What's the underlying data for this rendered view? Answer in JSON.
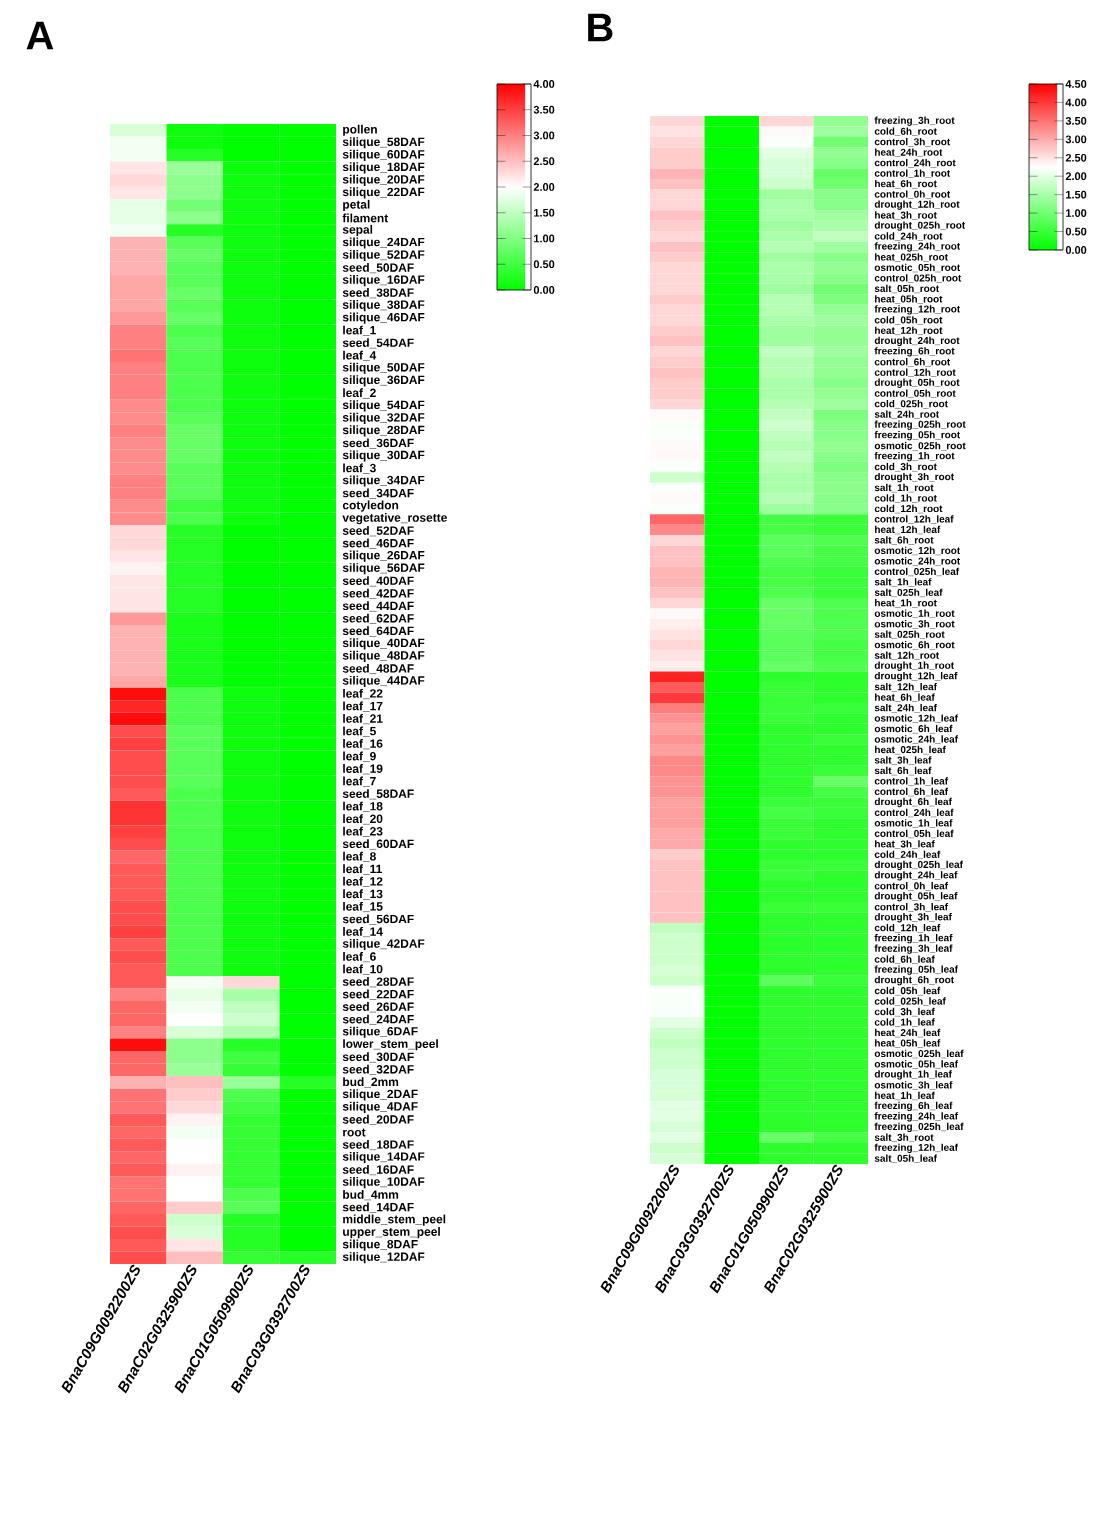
{
  "chart_data": [
    {
      "type": "heatmap",
      "title": "A",
      "clim": [
        0,
        4
      ],
      "cticks": [
        {
          "value": 0,
          "label": "0.00"
        },
        {
          "value": 0.5,
          "label": "0.50"
        },
        {
          "value": 1,
          "label": "1.00"
        },
        {
          "value": 1.5,
          "label": "1.50"
        },
        {
          "value": 2,
          "label": "2.00"
        },
        {
          "value": 2.5,
          "label": "2.50"
        },
        {
          "value": 3,
          "label": "3.00"
        },
        {
          "value": 3.5,
          "label": "3.50"
        },
        {
          "value": 4,
          "label": "4.00"
        }
      ],
      "categories": [
        "BnaC09G0092200ZS",
        "BnaC02G0325900ZS",
        "BnaC01G0509900ZS",
        "BnaC03G0392700ZS"
      ],
      "y_categories": [
        "pollen",
        "silique_58DAF",
        "silique_60DAF",
        "silique_18DAF",
        "silique_20DAF",
        "silique_22DAF",
        "petal",
        "filament",
        "sepal",
        "silique_24DAF",
        "silique_52DAF",
        "seed_50DAF",
        "silique_16DAF",
        "seed_38DAF",
        "silique_38DAF",
        "silique_46DAF",
        "leaf_1",
        "seed_54DAF",
        "leaf_4",
        "silique_50DAF",
        "silique_36DAF",
        "leaf_2",
        "silique_54DAF",
        "silique_32DAF",
        "silique_28DAF",
        "seed_36DAF",
        "silique_30DAF",
        "leaf_3",
        "silique_34DAF",
        "seed_34DAF",
        "cotyledon",
        "vegetative_rosette",
        "seed_52DAF",
        "seed_46DAF",
        "silique_26DAF",
        "silique_56DAF",
        "seed_40DAF",
        "seed_42DAF",
        "seed_44DAF",
        "seed_62DAF",
        "seed_64DAF",
        "silique_40DAF",
        "silique_48DAF",
        "seed_48DAF",
        "silique_44DAF",
        "leaf_22",
        "leaf_17",
        "leaf_21",
        "leaf_5",
        "leaf_16",
        "leaf_9",
        "leaf_19",
        "leaf_7",
        "seed_58DAF",
        "leaf_18",
        "leaf_20",
        "leaf_23",
        "seed_60DAF",
        "leaf_8",
        "leaf_11",
        "leaf_12",
        "leaf_13",
        "leaf_15",
        "seed_56DAF",
        "leaf_14",
        "silique_42DAF",
        "leaf_6",
        "leaf_10",
        "seed_28DAF",
        "seed_22DAF",
        "seed_26DAF",
        "seed_24DAF",
        "silique_6DAF",
        "lower_stem_peel",
        "seed_30DAF",
        "seed_32DAF",
        "bud_2mm",
        "silique_2DAF",
        "silique_4DAF",
        "seed_20DAF",
        "root",
        "seed_18DAF",
        "silique_14DAF",
        "seed_16DAF",
        "silique_10DAF",
        "bud_4mm",
        "seed_14DAF",
        "middle_stem_peel",
        "upper_stem_peel",
        "silique_8DAF",
        "silique_12DAF"
      ],
      "cells": [
        [
          1.7,
          0.1,
          0.0,
          0.0
        ],
        [
          1.9,
          0.1,
          0.0,
          0.0
        ],
        [
          1.9,
          0.3,
          0.0,
          0.0
        ],
        [
          2.2,
          1.2,
          0.1,
          0.0
        ],
        [
          2.3,
          1.1,
          0.1,
          0.0
        ],
        [
          2.2,
          1.1,
          0.1,
          0.0
        ],
        [
          1.8,
          0.9,
          0.1,
          0.0
        ],
        [
          1.8,
          1.1,
          0.1,
          0.0
        ],
        [
          1.9,
          0.3,
          0.1,
          0.0
        ],
        [
          2.6,
          0.7,
          0.1,
          0.0
        ],
        [
          2.6,
          0.8,
          0.1,
          0.0
        ],
        [
          2.6,
          0.7,
          0.1,
          0.0
        ],
        [
          2.7,
          0.7,
          0.1,
          0.0
        ],
        [
          2.7,
          0.8,
          0.1,
          0.0
        ],
        [
          2.7,
          0.7,
          0.1,
          0.0
        ],
        [
          2.8,
          0.8,
          0.1,
          0.0
        ],
        [
          3.0,
          0.6,
          0.1,
          0.0
        ],
        [
          3.0,
          0.7,
          0.1,
          0.0
        ],
        [
          3.1,
          0.6,
          0.1,
          0.0
        ],
        [
          3.0,
          0.6,
          0.1,
          0.0
        ],
        [
          3.0,
          0.6,
          0.1,
          0.0
        ],
        [
          3.0,
          0.6,
          0.1,
          0.0
        ],
        [
          2.9,
          0.6,
          0.1,
          0.0
        ],
        [
          2.9,
          0.7,
          0.1,
          0.0
        ],
        [
          3.0,
          0.8,
          0.1,
          0.0
        ],
        [
          2.9,
          0.8,
          0.1,
          0.0
        ],
        [
          2.9,
          0.8,
          0.1,
          0.0
        ],
        [
          2.9,
          0.7,
          0.1,
          0.0
        ],
        [
          3.0,
          0.7,
          0.1,
          0.0
        ],
        [
          3.0,
          0.7,
          0.1,
          0.0
        ],
        [
          2.9,
          0.5,
          0.1,
          0.0
        ],
        [
          2.9,
          0.6,
          0.1,
          0.0
        ],
        [
          2.3,
          0.3,
          0.0,
          0.0
        ],
        [
          2.3,
          0.3,
          0.0,
          0.0
        ],
        [
          2.2,
          0.3,
          0.0,
          0.0
        ],
        [
          2.1,
          0.3,
          0.0,
          0.0
        ],
        [
          2.2,
          0.3,
          0.0,
          0.0
        ],
        [
          2.2,
          0.3,
          0.0,
          0.0
        ],
        [
          2.2,
          0.3,
          0.0,
          0.0
        ],
        [
          2.8,
          0.2,
          0.0,
          0.0
        ],
        [
          2.6,
          0.2,
          0.0,
          0.0
        ],
        [
          2.6,
          0.2,
          0.0,
          0.0
        ],
        [
          2.6,
          0.2,
          0.0,
          0.0
        ],
        [
          2.6,
          0.2,
          0.0,
          0.0
        ],
        [
          2.7,
          0.2,
          0.0,
          0.0
        ],
        [
          3.9,
          0.6,
          0.1,
          0.0
        ],
        [
          3.7,
          0.6,
          0.1,
          0.0
        ],
        [
          3.9,
          0.6,
          0.1,
          0.0
        ],
        [
          3.4,
          0.7,
          0.1,
          0.0
        ],
        [
          3.5,
          0.7,
          0.1,
          0.0
        ],
        [
          3.4,
          0.7,
          0.1,
          0.0
        ],
        [
          3.4,
          0.7,
          0.1,
          0.0
        ],
        [
          3.4,
          0.7,
          0.1,
          0.0
        ],
        [
          3.3,
          0.6,
          0.1,
          0.0
        ],
        [
          3.6,
          0.6,
          0.1,
          0.0
        ],
        [
          3.6,
          0.6,
          0.1,
          0.0
        ],
        [
          3.5,
          0.6,
          0.1,
          0.0
        ],
        [
          3.4,
          0.6,
          0.1,
          0.0
        ],
        [
          3.2,
          0.6,
          0.1,
          0.0
        ],
        [
          3.3,
          0.6,
          0.1,
          0.0
        ],
        [
          3.3,
          0.6,
          0.1,
          0.0
        ],
        [
          3.3,
          0.6,
          0.1,
          0.0
        ],
        [
          3.4,
          0.6,
          0.1,
          0.0
        ],
        [
          3.4,
          0.6,
          0.1,
          0.0
        ],
        [
          3.5,
          0.6,
          0.1,
          0.0
        ],
        [
          3.3,
          0.6,
          0.1,
          0.0
        ],
        [
          3.4,
          0.6,
          0.1,
          0.0
        ],
        [
          3.3,
          0.6,
          0.1,
          0.0
        ],
        [
          3.3,
          1.9,
          2.3,
          0.0
        ],
        [
          3.0,
          1.8,
          1.3,
          0.0
        ],
        [
          3.2,
          1.9,
          1.5,
          0.0
        ],
        [
          3.2,
          2.0,
          1.6,
          0.0
        ],
        [
          3.0,
          1.7,
          1.4,
          0.0
        ],
        [
          3.9,
          1.1,
          0.3,
          0.0
        ],
        [
          3.2,
          1.1,
          0.5,
          0.0
        ],
        [
          3.2,
          1.2,
          0.4,
          0.0
        ],
        [
          2.6,
          2.5,
          1.2,
          0.3
        ],
        [
          3.1,
          2.4,
          0.6,
          0.0
        ],
        [
          3.1,
          2.3,
          0.5,
          0.0
        ],
        [
          3.3,
          2.1,
          0.4,
          0.0
        ],
        [
          3.2,
          1.9,
          0.4,
          0.0
        ],
        [
          3.3,
          2.0,
          0.4,
          0.0
        ],
        [
          3.2,
          2.0,
          0.4,
          0.0
        ],
        [
          3.3,
          2.1,
          0.4,
          0.0
        ],
        [
          3.1,
          2.0,
          0.4,
          0.0
        ],
        [
          3.1,
          2.0,
          0.6,
          0.0
        ],
        [
          3.2,
          2.4,
          0.7,
          0.0
        ],
        [
          3.3,
          1.6,
          0.3,
          0.0
        ],
        [
          3.4,
          1.7,
          0.3,
          0.0
        ],
        [
          3.3,
          2.2,
          0.3,
          0.0
        ],
        [
          3.4,
          2.5,
          0.4,
          0.3
        ]
      ]
    },
    {
      "type": "heatmap",
      "title": "B",
      "clim": [
        0,
        4.5
      ],
      "cticks": [
        {
          "value": 0,
          "label": "0.00"
        },
        {
          "value": 0.5,
          "label": "0.50"
        },
        {
          "value": 1,
          "label": "1.00"
        },
        {
          "value": 1.5,
          "label": "1.50"
        },
        {
          "value": 2,
          "label": "2.00"
        },
        {
          "value": 2.5,
          "label": "2.50"
        },
        {
          "value": 3,
          "label": "3.00"
        },
        {
          "value": 3.5,
          "label": "3.50"
        },
        {
          "value": 4,
          "label": "4.00"
        },
        {
          "value": 4.5,
          "label": "4.50"
        }
      ],
      "categories": [
        "BnaC09G0092200ZS",
        "BnaC03G0392700ZS",
        "BnaC01G0509900ZS",
        "BnaC02G0325900ZS"
      ],
      "y_categories": [
        "freezing_3h_root",
        "cold_6h_root",
        "control_3h_root",
        "heat_24h_root",
        "control_24h_root",
        "control_1h_root",
        "heat_6h_root",
        "control_0h_root",
        "drought_12h_root",
        "heat_3h_root",
        "drought_025h_root",
        "cold_24h_root",
        "freezing_24h_root",
        "heat_025h_root",
        "osmotic_05h_root",
        "control_025h_root",
        "salt_05h_root",
        "heat_05h_root",
        "freezing_12h_root",
        "cold_05h_root",
        "heat_12h_root",
        "drought_24h_root",
        "freezing_6h_root",
        "control_6h_root",
        "control_12h_root",
        "drought_05h_root",
        "control_05h_root",
        "cold_025h_root",
        "salt_24h_root",
        "freezing_025h_root",
        "freezing_05h_root",
        "osmotic_025h_root",
        "freezing_1h_root",
        "cold_3h_root",
        "drought_3h_root",
        "salt_1h_root",
        "cold_1h_root",
        "cold_12h_root",
        "control_12h_leaf",
        "heat_12h_leaf",
        "salt_6h_root",
        "osmotic_12h_root",
        "osmotic_24h_root",
        "control_025h_leaf",
        "salt_1h_leaf",
        "salt_025h_leaf",
        "heat_1h_root",
        "osmotic_1h_root",
        "osmotic_3h_root",
        "salt_025h_root",
        "osmotic_6h_root",
        "salt_12h_root",
        "drought_1h_root",
        "drought_12h_leaf",
        "salt_12h_leaf",
        "heat_6h_leaf",
        "salt_24h_leaf",
        "osmotic_12h_leaf",
        "osmotic_6h_leaf",
        "osmotic_24h_leaf",
        "heat_025h_leaf",
        "salt_3h_leaf",
        "salt_6h_leaf",
        "control_1h_leaf",
        "control_6h_leaf",
        "drought_6h_leaf",
        "control_24h_leaf",
        "osmotic_1h_leaf",
        "control_05h_leaf",
        "heat_3h_leaf",
        "cold_24h_leaf",
        "drought_025h_leaf",
        "drought_24h_leaf",
        "control_0h_leaf",
        "drought_05h_leaf",
        "control_3h_leaf",
        "drought_3h_leaf",
        "cold_12h_leaf",
        "freezing_1h_leaf",
        "freezing_3h_leaf",
        "cold_6h_leaf",
        "freezing_05h_leaf",
        "drought_6h_root",
        "cold_05h_leaf",
        "cold_025h_leaf",
        "cold_3h_leaf",
        "cold_1h_leaf",
        "heat_24h_leaf",
        "heat_05h_leaf",
        "osmotic_025h_leaf",
        "osmotic_05h_leaf",
        "drought_1h_leaf",
        "osmotic_3h_leaf",
        "heat_1h_leaf",
        "freezing_6h_leaf",
        "freezing_24h_leaf",
        "freezing_025h_leaf",
        "salt_3h_root",
        "freezing_12h_leaf",
        "salt_05h_leaf"
      ],
      "cells": [
        [
          2.6,
          0,
          2.6,
          1.3
        ],
        [
          2.5,
          0,
          2.3,
          1.4
        ],
        [
          2.6,
          0,
          2.2,
          1.0
        ],
        [
          2.7,
          0,
          2.0,
          1.3
        ],
        [
          2.7,
          0,
          1.9,
          1.2
        ],
        [
          2.9,
          0,
          1.9,
          0.9
        ],
        [
          2.8,
          0,
          1.8,
          1.0
        ],
        [
          2.6,
          0,
          1.4,
          1.2
        ],
        [
          2.6,
          0,
          1.5,
          1.2
        ],
        [
          2.8,
          0,
          1.5,
          1.4
        ],
        [
          2.7,
          0,
          1.4,
          1.5
        ],
        [
          2.6,
          0,
          1.5,
          1.7
        ],
        [
          2.8,
          0,
          1.6,
          1.4
        ],
        [
          2.7,
          0,
          1.4,
          1.2
        ],
        [
          2.6,
          0,
          1.5,
          1.3
        ],
        [
          2.6,
          0,
          1.5,
          1.2
        ],
        [
          2.6,
          0,
          1.4,
          1.0
        ],
        [
          2.7,
          0,
          1.6,
          1.1
        ],
        [
          2.6,
          0,
          1.6,
          1.3
        ],
        [
          2.6,
          0,
          1.5,
          1.4
        ],
        [
          2.7,
          0,
          1.4,
          1.3
        ],
        [
          2.8,
          0,
          1.4,
          1.3
        ],
        [
          2.6,
          0,
          1.7,
          1.4
        ],
        [
          2.7,
          0,
          1.6,
          1.3
        ],
        [
          2.8,
          0,
          1.6,
          1.3
        ],
        [
          2.7,
          0,
          1.5,
          1.2
        ],
        [
          2.7,
          0,
          1.5,
          1.3
        ],
        [
          2.6,
          0,
          1.6,
          1.4
        ],
        [
          2.3,
          0,
          1.7,
          1.1
        ],
        [
          2.2,
          0,
          1.8,
          1.2
        ],
        [
          2.2,
          0,
          1.7,
          1.2
        ],
        [
          2.3,
          0,
          1.6,
          1.3
        ],
        [
          2.3,
          0,
          1.7,
          1.2
        ],
        [
          2.2,
          0,
          1.6,
          1.1
        ],
        [
          1.8,
          0,
          1.5,
          1.2
        ],
        [
          2.2,
          0,
          1.5,
          1.2
        ],
        [
          2.3,
          0,
          1.6,
          1.2
        ],
        [
          2.2,
          0,
          1.4,
          1.2
        ],
        [
          3.6,
          0,
          0.6,
          0.5
        ],
        [
          3.3,
          0,
          0.6,
          0.5
        ],
        [
          2.6,
          0,
          0.8,
          0.7
        ],
        [
          2.8,
          0,
          0.8,
          0.6
        ],
        [
          2.8,
          0,
          0.7,
          0.6
        ],
        [
          2.9,
          0,
          0.6,
          0.5
        ],
        [
          2.9,
          0,
          0.6,
          0.5
        ],
        [
          2.8,
          0,
          0.7,
          0.5
        ],
        [
          2.6,
          0,
          0.9,
          0.7
        ],
        [
          2.3,
          0,
          0.9,
          0.7
        ],
        [
          2.4,
          0,
          0.9,
          0.7
        ],
        [
          2.5,
          0,
          0.8,
          0.7
        ],
        [
          2.6,
          0,
          0.8,
          0.6
        ],
        [
          2.5,
          0,
          0.8,
          0.6
        ],
        [
          2.4,
          0,
          0.9,
          0.7
        ],
        [
          4.2,
          0,
          0.4,
          0.4
        ],
        [
          3.7,
          0,
          0.5,
          0.4
        ],
        [
          4.0,
          0,
          0.5,
          0.4
        ],
        [
          3.4,
          0,
          0.5,
          0.5
        ],
        [
          3.2,
          0,
          0.5,
          0.4
        ],
        [
          3.1,
          0,
          0.4,
          0.4
        ],
        [
          3.2,
          0,
          0.4,
          0.5
        ],
        [
          3.1,
          0,
          0.4,
          0.4
        ],
        [
          3.3,
          0,
          0.4,
          0.4
        ],
        [
          3.3,
          0,
          0.4,
          0.5
        ],
        [
          3.2,
          0,
          0.4,
          0.9
        ],
        [
          3.2,
          0,
          0.4,
          0.6
        ],
        [
          3.1,
          0,
          0.5,
          0.5
        ],
        [
          3.1,
          0,
          0.6,
          0.5
        ],
        [
          3.1,
          0,
          0.5,
          0.4
        ],
        [
          3.0,
          0,
          0.5,
          0.4
        ],
        [
          3.0,
          0,
          0.4,
          0.4
        ],
        [
          2.7,
          0,
          0.4,
          0.4
        ],
        [
          2.8,
          0,
          0.5,
          0.5
        ],
        [
          2.8,
          0,
          0.5,
          0.4
        ],
        [
          2.8,
          0,
          0.4,
          0.4
        ],
        [
          2.8,
          0,
          0.4,
          0.4
        ],
        [
          2.8,
          0,
          0.5,
          0.5
        ],
        [
          2.8,
          0,
          0.4,
          0.4
        ],
        [
          1.7,
          0,
          0.4,
          0.4
        ],
        [
          1.8,
          0,
          0.4,
          0.4
        ],
        [
          1.8,
          0,
          0.4,
          0.4
        ],
        [
          1.8,
          0,
          0.4,
          0.4
        ],
        [
          1.9,
          0,
          0.4,
          0.4
        ],
        [
          1.8,
          0,
          0.8,
          0.5
        ],
        [
          2.2,
          0,
          0.4,
          0.4
        ],
        [
          2.2,
          0,
          0.4,
          0.4
        ],
        [
          2.2,
          0,
          0.4,
          0.4
        ],
        [
          2.0,
          0,
          0.4,
          0.4
        ],
        [
          1.8,
          0,
          0.4,
          0.4
        ],
        [
          1.7,
          0,
          0.4,
          0.4
        ],
        [
          1.8,
          0,
          0.4,
          0.4
        ],
        [
          1.8,
          0,
          0.4,
          0.4
        ],
        [
          1.9,
          0,
          0.4,
          0.4
        ],
        [
          1.9,
          0,
          0.4,
          0.4
        ],
        [
          1.9,
          0,
          0.4,
          0.4
        ],
        [
          2.0,
          0,
          0.4,
          0.4
        ],
        [
          2.0,
          0,
          0.4,
          0.4
        ],
        [
          1.9,
          0,
          0.4,
          0.4
        ],
        [
          2.0,
          0,
          0.9,
          0.6
        ],
        [
          1.8,
          0,
          0.4,
          0.4
        ],
        [
          1.9,
          0,
          0.4,
          0.4
        ]
      ]
    }
  ]
}
